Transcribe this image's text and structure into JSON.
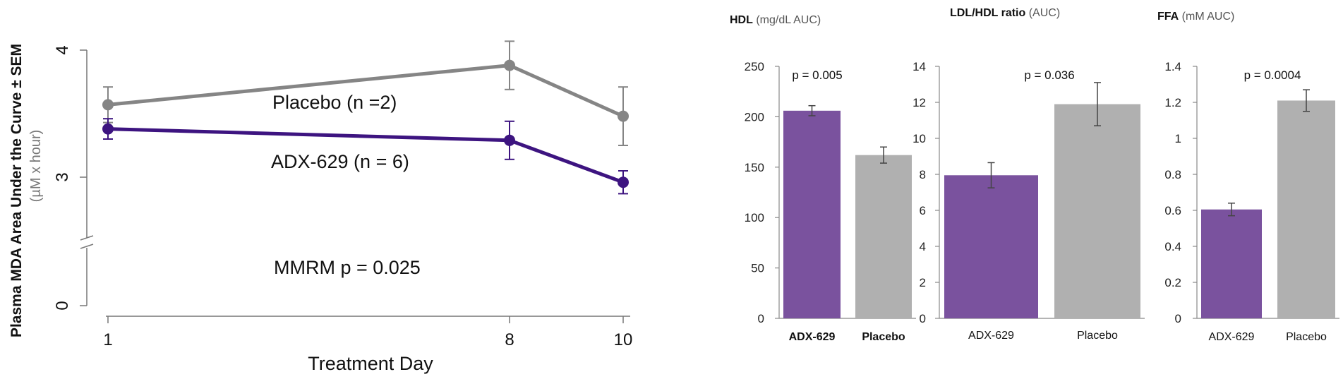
{
  "colors": {
    "adx": "#3d1480",
    "placebo": "#858585",
    "bar_adx": "#7a529e",
    "bar_placebo": "#b0b0b0",
    "axis": "#777777",
    "err": "#444444"
  },
  "chart_data": [
    {
      "type": "line",
      "ylabel": "Plasma MDA Area Under the Curve ± SEM",
      "ylabel_unit": "(µM x hour)",
      "xlabel": "Treatment Day",
      "x_ticks": [
        "1",
        "8",
        "10"
      ],
      "y_ticks": [
        "0",
        "3",
        "4"
      ],
      "y_axis_break": true,
      "annotation": "MMRM p = 0.025",
      "series": [
        {
          "name": "Placebo (n =2)",
          "color": "#858585",
          "x": [
            1,
            8,
            10
          ],
          "y": [
            3.57,
            3.88,
            3.48
          ],
          "err": [
            0.14,
            0.19,
            0.23
          ]
        },
        {
          "name": "ADX-629 (n = 6)",
          "color": "#3d1480",
          "x": [
            1,
            8,
            10
          ],
          "y": [
            3.38,
            3.29,
            2.96
          ],
          "err": [
            0.08,
            0.15,
            0.09
          ]
        }
      ]
    },
    {
      "type": "bar",
      "title_bold": "HDL",
      "title_rest": "(mg/dL AUC)",
      "categories": [
        "ADX-629",
        "Placebo"
      ],
      "categories_bold": true,
      "values": [
        206,
        162
      ],
      "errors": [
        5,
        8
      ],
      "ylim": [
        0,
        250
      ],
      "yticks": [
        "0",
        "50",
        "100",
        "150",
        "200",
        "250"
      ],
      "annotation": "p = 0.005"
    },
    {
      "type": "bar",
      "title_bold": "LDL/HDL ratio",
      "title_rest": "(AUC)",
      "categories": [
        "ADX-629",
        "Placebo"
      ],
      "categories_bold": false,
      "values": [
        7.95,
        11.9
      ],
      "errors": [
        0.7,
        1.2
      ],
      "ylim": [
        0,
        14
      ],
      "yticks": [
        "0",
        "2",
        "4",
        "6",
        "8",
        "10",
        "12",
        "14"
      ],
      "annotation": "p = 0.036"
    },
    {
      "type": "bar",
      "title_bold": "FFA",
      "title_rest": "(mM AUC)",
      "categories": [
        "ADX-629",
        "Placebo"
      ],
      "categories_bold": false,
      "values": [
        0.605,
        1.21
      ],
      "errors": [
        0.035,
        0.06
      ],
      "ylim": [
        0,
        1.4
      ],
      "yticks": [
        "0",
        "0.2",
        "0.4",
        "0.6",
        "0.8",
        "1",
        "1.2",
        "1.4"
      ],
      "annotation": "p = 0.0004"
    }
  ]
}
